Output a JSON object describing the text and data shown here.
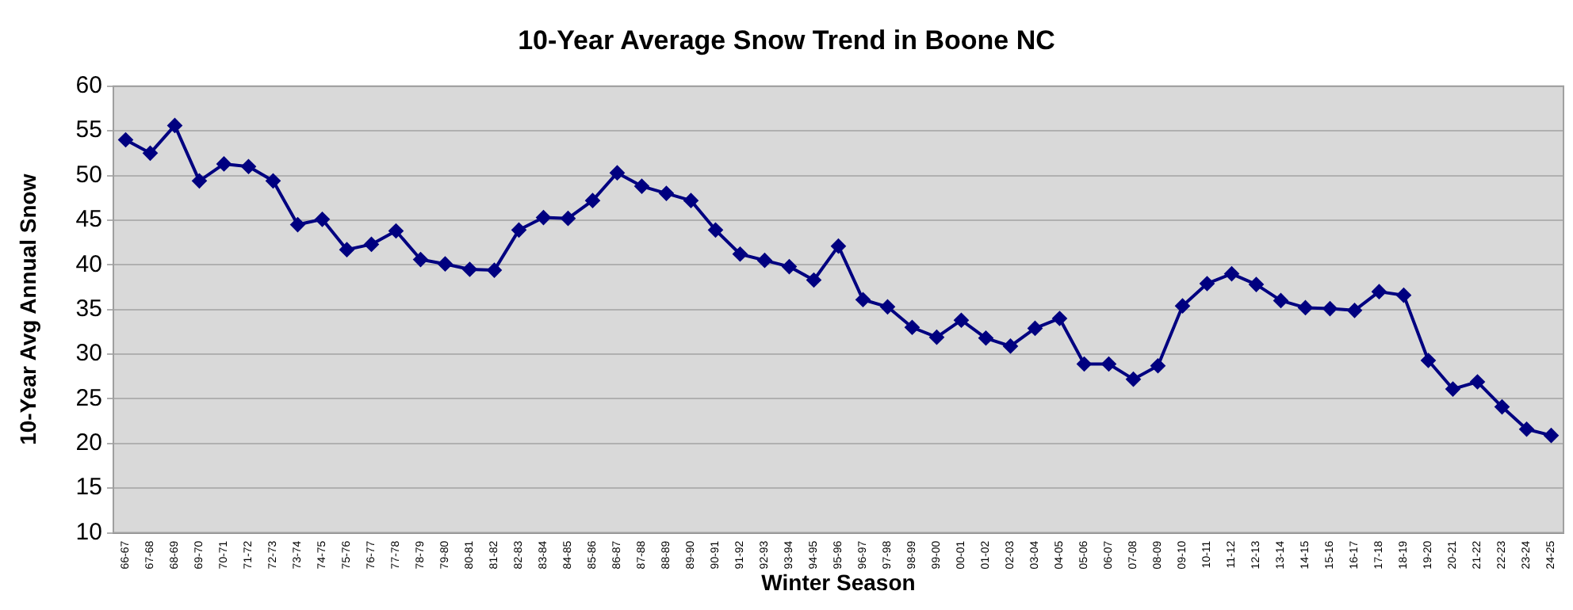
{
  "chart_data": {
    "type": "line",
    "title": "10-Year Average Snow Trend in Boone NC",
    "xlabel": "Winter Season",
    "ylabel": "10-Year Avg Annual Snow",
    "categories": [
      "66-67",
      "67-68",
      "68-69",
      "69-70",
      "70-71",
      "71-72",
      "72-73",
      "73-74",
      "74-75",
      "75-76",
      "76-77",
      "77-78",
      "78-79",
      "79-80",
      "80-81",
      "81-82",
      "82-83",
      "83-84",
      "84-85",
      "85-86",
      "86-87",
      "87-88",
      "88-89",
      "89-90",
      "90-91",
      "91-92",
      "92-93",
      "93-94",
      "94-95",
      "95-96",
      "96-97",
      "97-98",
      "98-99",
      "99-00",
      "00-01",
      "01-02",
      "02-03",
      "03-04",
      "04-05",
      "05-06",
      "06-07",
      "07-08",
      "08-09",
      "09-10",
      "10-11",
      "11-12",
      "12-13",
      "13-14",
      "14-15",
      "15-16",
      "16-17",
      "17-18",
      "18-19",
      "19-20",
      "20-21",
      "21-22",
      "22-23",
      "23-24",
      "24-25"
    ],
    "series": [
      {
        "color": "#000080",
        "values": [
          54.0,
          52.5,
          55.6,
          49.4,
          51.3,
          51.0,
          49.4,
          44.5,
          45.1,
          41.7,
          42.3,
          43.8,
          40.6,
          40.1,
          39.5,
          39.4,
          43.9,
          45.3,
          45.2,
          47.2,
          50.3,
          48.8,
          48.0,
          47.2,
          43.9,
          41.2,
          40.5,
          39.8,
          38.3,
          42.1,
          36.1,
          35.3,
          33.0,
          31.9,
          33.8,
          31.8,
          30.9,
          32.9,
          34.0,
          28.9,
          28.9,
          27.2,
          28.7,
          35.4,
          37.9,
          39.0,
          37.8,
          36.0,
          35.2,
          35.1,
          34.9,
          37.0,
          36.6,
          29.3,
          26.1,
          26.9,
          24.1,
          21.6,
          20.9
        ]
      }
    ],
    "ylim": [
      10,
      60
    ],
    "yticks": [
      10,
      15,
      20,
      25,
      30,
      35,
      40,
      45,
      50,
      55,
      60
    ],
    "grid": "y",
    "legend": false,
    "marker": "diamond",
    "line_style": "solid"
  }
}
